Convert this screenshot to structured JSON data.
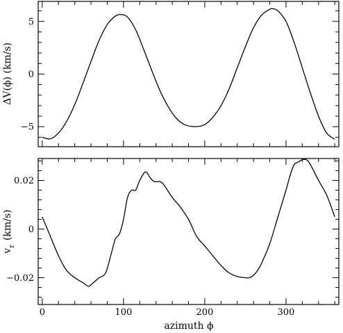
{
  "chart_data": [
    {
      "type": "line",
      "title": "",
      "xlabel": "",
      "ylabel": "ΔV(ϕ) (km/s)",
      "xlim": [
        -5,
        365
      ],
      "ylim": [
        -6.9,
        6.9
      ],
      "yticks": [
        -5,
        0,
        5
      ],
      "ytick_labels": [
        "−5",
        "0",
        "5"
      ],
      "x_tick_labels_shown": false,
      "grid": false,
      "series": [
        {
          "x": [
            0,
            10,
            20,
            30,
            40,
            50,
            60,
            70,
            80,
            90,
            97,
            105,
            115,
            125,
            135,
            145,
            155,
            165,
            175,
            188,
            200,
            210,
            220,
            230,
            240,
            250,
            260,
            270,
            280,
            284,
            290,
            300,
            310,
            320,
            330,
            340,
            350,
            360
          ],
          "y": [
            -6.0,
            -6.15,
            -5.6,
            -4.5,
            -2.9,
            -0.9,
            1.2,
            3.2,
            4.7,
            5.5,
            5.65,
            5.4,
            4.2,
            2.3,
            0.3,
            -1.6,
            -3.1,
            -4.2,
            -4.8,
            -5.0,
            -4.8,
            -4.1,
            -3.0,
            -1.4,
            0.6,
            2.6,
            4.4,
            5.6,
            6.15,
            6.2,
            6.0,
            5.0,
            3.0,
            0.6,
            -1.8,
            -4.0,
            -5.6,
            -6.2
          ]
        }
      ]
    },
    {
      "type": "line",
      "title": "",
      "xlabel": "azimuth ϕ",
      "ylabel_main": "v",
      "ylabel_sub": "r",
      "ylabel_unit": "(km/s)",
      "xlim": [
        -5,
        365
      ],
      "ylim": [
        -0.031,
        0.029
      ],
      "xticks": [
        0,
        100,
        200,
        300
      ],
      "xtick_labels": [
        "0",
        "100",
        "200",
        "300"
      ],
      "yticks": [
        -0.02,
        0,
        0.02
      ],
      "ytick_labels": [
        "−0.02",
        "0",
        "0.02"
      ],
      "grid": false,
      "series": [
        {
          "x": [
            0,
            10,
            20,
            30,
            40,
            50,
            57,
            63,
            70,
            78,
            85,
            90,
            95,
            100,
            105,
            110,
            115,
            120,
            127,
            133,
            138,
            145,
            150,
            160,
            170,
            180,
            190,
            200,
            210,
            220,
            230,
            240,
            250,
            255,
            260,
            265,
            270,
            280,
            290,
            300,
            305,
            310,
            315,
            320,
            325,
            330,
            340,
            350,
            360
          ],
          "y": [
            0.005,
            -0.003,
            -0.011,
            -0.017,
            -0.02,
            -0.022,
            -0.0235,
            -0.022,
            -0.02,
            -0.018,
            -0.01,
            -0.004,
            -0.002,
            0.004,
            0.013,
            0.016,
            0.016,
            0.02,
            0.0235,
            0.021,
            0.0195,
            0.0195,
            0.018,
            0.013,
            0.009,
            0.004,
            -0.003,
            -0.007,
            -0.011,
            -0.015,
            -0.018,
            -0.0195,
            -0.02,
            -0.02,
            -0.019,
            -0.017,
            -0.014,
            -0.006,
            0.005,
            0.016,
            0.022,
            0.0265,
            0.0275,
            0.0285,
            0.0285,
            0.0265,
            0.02,
            0.014,
            0.005
          ]
        }
      ]
    }
  ]
}
